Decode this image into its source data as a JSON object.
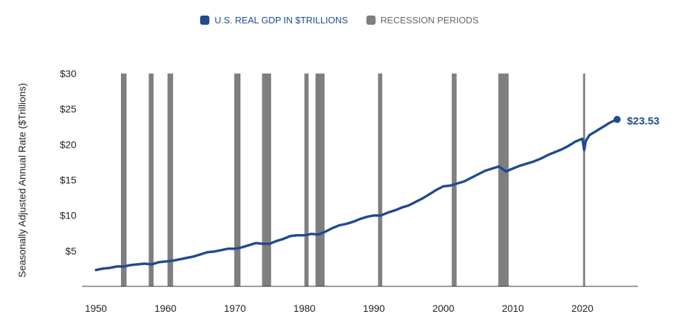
{
  "legend": {
    "gdp_label": "U.S. REAL GDP IN $TRILLIONS",
    "recession_label": "RECESSION PERIODS"
  },
  "colors": {
    "gdp": "#1f4b8f",
    "recession": "#7f7f7f",
    "axis": "#333333"
  },
  "chart_data": {
    "type": "line",
    "title": "",
    "xlabel": "",
    "ylabel": "Seasonally Adjusted Annual Rate ($Trillions)",
    "xlim": [
      1948,
      2028
    ],
    "ylim": [
      0,
      30
    ],
    "xticks": [
      1950,
      1960,
      1970,
      1980,
      1990,
      2000,
      2010,
      2020
    ],
    "yticks": [
      5,
      10,
      15,
      20,
      25,
      30
    ],
    "ytick_labels": [
      "$5",
      "$10",
      "$15",
      "$20",
      "$25",
      "$30"
    ],
    "grid": false,
    "legend_position": "top-center",
    "series": [
      {
        "name": "U.S. REAL GDP IN $TRILLIONS",
        "x": [
          1950,
          1951,
          1952,
          1953,
          1954,
          1955,
          1956,
          1957,
          1958,
          1959,
          1960,
          1961,
          1962,
          1963,
          1964,
          1965,
          1966,
          1967,
          1968,
          1969,
          1970,
          1971,
          1972,
          1973,
          1974,
          1975,
          1976,
          1977,
          1978,
          1979,
          1980,
          1981,
          1982,
          1983,
          1984,
          1985,
          1986,
          1987,
          1988,
          1989,
          1990,
          1991,
          1992,
          1993,
          1994,
          1995,
          1996,
          1997,
          1998,
          1999,
          2000,
          2001,
          2002,
          2003,
          2004,
          2005,
          2006,
          2007,
          2008,
          2009,
          2010,
          2011,
          2012,
          2013,
          2014,
          2015,
          2016,
          2017,
          2018,
          2019,
          2020,
          2020.25,
          2020.5,
          2021,
          2022,
          2023,
          2024,
          2025
        ],
        "y": [
          2.3,
          2.5,
          2.6,
          2.8,
          2.8,
          3.0,
          3.1,
          3.2,
          3.1,
          3.4,
          3.5,
          3.6,
          3.8,
          4.0,
          4.2,
          4.5,
          4.8,
          4.9,
          5.1,
          5.3,
          5.3,
          5.5,
          5.8,
          6.1,
          6.0,
          6.0,
          6.4,
          6.7,
          7.1,
          7.2,
          7.2,
          7.4,
          7.3,
          7.7,
          8.2,
          8.6,
          8.8,
          9.1,
          9.5,
          9.8,
          10.0,
          10.0,
          10.4,
          10.7,
          11.1,
          11.4,
          11.9,
          12.4,
          13.0,
          13.6,
          14.1,
          14.2,
          14.5,
          14.8,
          15.3,
          15.8,
          16.3,
          16.6,
          16.9,
          16.2,
          16.6,
          17.0,
          17.3,
          17.6,
          18.0,
          18.5,
          18.9,
          19.3,
          19.8,
          20.4,
          20.8,
          19.2,
          20.5,
          21.3,
          21.9,
          22.5,
          23.1,
          23.53
        ]
      }
    ],
    "recessions": [
      [
        1953.6,
        1954.4
      ],
      [
        1957.6,
        1958.3
      ],
      [
        1960.3,
        1961.1
      ],
      [
        1969.9,
        1970.8
      ],
      [
        1973.9,
        1975.2
      ],
      [
        1980.0,
        1980.6
      ],
      [
        1981.6,
        1982.9
      ],
      [
        1990.6,
        1991.2
      ],
      [
        2001.2,
        2001.9
      ],
      [
        2007.9,
        2009.4
      ],
      [
        2020.1,
        2020.4
      ]
    ],
    "end_point": {
      "x": 2025,
      "y": 23.53,
      "label": "$23.53"
    }
  }
}
